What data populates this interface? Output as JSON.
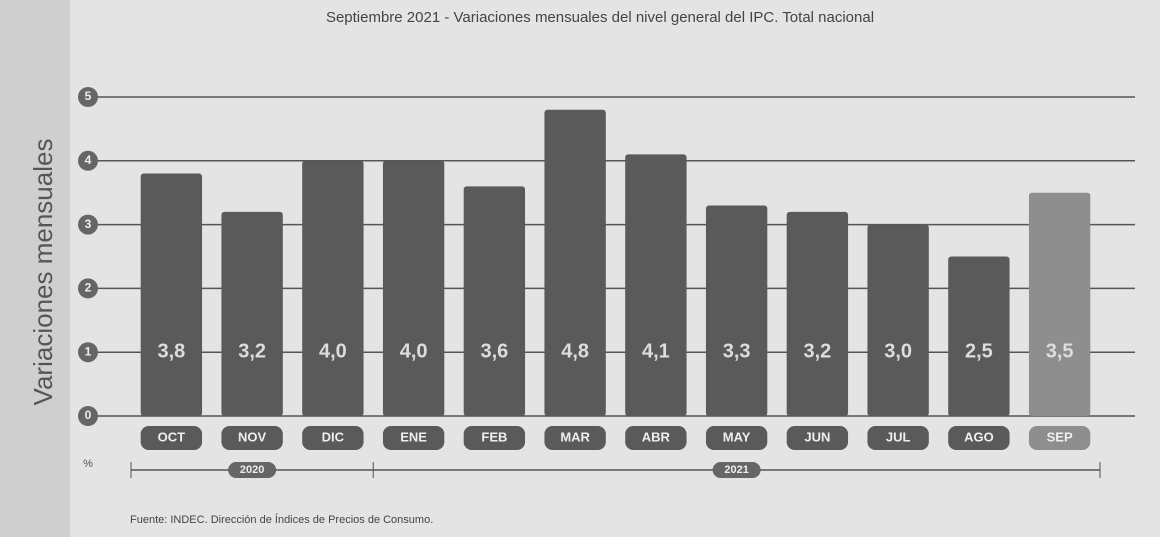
{
  "chart_data": {
    "type": "bar",
    "title": "Septiembre 2021 - Variaciones mensuales del nivel general del IPC. Total nacional",
    "y_label": "Variaciones mensuales",
    "y_unit": "%",
    "source": "Fuente: INDEC. Dirección de Índices de Precios de Consumo.",
    "categories": [
      "OCT",
      "NOV",
      "DIC",
      "ENE",
      "FEB",
      "MAR",
      "ABR",
      "MAY",
      "JUN",
      "JUL",
      "AGO",
      "SEP"
    ],
    "category_groups": [
      "2020",
      "2020",
      "2020",
      "2021",
      "2021",
      "2021",
      "2021",
      "2021",
      "2021",
      "2021",
      "2021",
      "2021"
    ],
    "values": [
      3.8,
      3.2,
      4.0,
      4.0,
      3.6,
      4.8,
      4.1,
      3.3,
      3.2,
      3.0,
      2.5,
      3.5
    ],
    "value_labels": [
      "3,8",
      "3,2",
      "4,0",
      "4,0",
      "3,6",
      "4,8",
      "4,1",
      "3,3",
      "3,2",
      "3,0",
      "2,5",
      "3,5"
    ],
    "colors": [
      "#5a5a5a",
      "#5a5a5a",
      "#5a5a5a",
      "#5a5a5a",
      "#5a5a5a",
      "#5a5a5a",
      "#5a5a5a",
      "#5a5a5a",
      "#5a5a5a",
      "#5a5a5a",
      "#5a5a5a",
      "#8e8e8e"
    ],
    "ylim": [
      0,
      5
    ],
    "yticks": [
      0,
      1,
      2,
      3,
      4,
      5
    ],
    "grid": true
  }
}
